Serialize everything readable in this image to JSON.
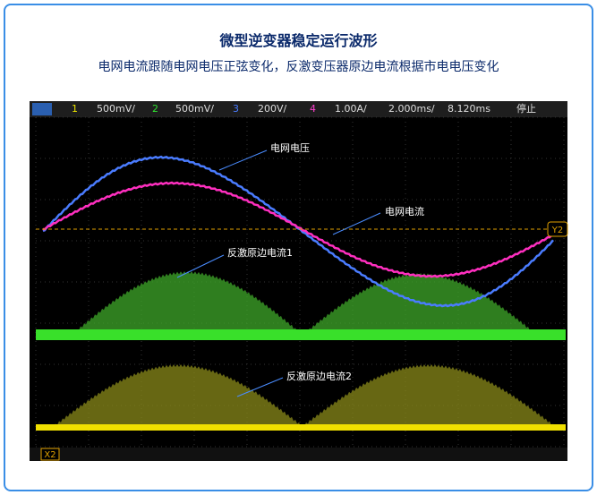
{
  "header": {
    "title": "微型逆变器稳定运行波形",
    "subtitle": "电网电流跟随电网电压正弦变化，反激变压器原边电流根据市电电压变化"
  },
  "toolbar": {
    "ch1": "1",
    "ch1_scale": "500mV/",
    "ch2": "2",
    "ch2_scale": "500mV/",
    "ch3": "3",
    "ch3_scale": "200V/",
    "ch4": "4",
    "ch4_scale": "1.00A/",
    "timebase": "2.000ms/",
    "delay": "8.120ms",
    "status": "停止"
  },
  "annotations": {
    "grid_voltage": "电网电压",
    "grid_current": "电网电流",
    "flyback_current_1": "反激原边电流1",
    "flyback_current_2": "反激原边电流2"
  },
  "markers": {
    "y2": "Y2",
    "x2": "X2"
  }
}
